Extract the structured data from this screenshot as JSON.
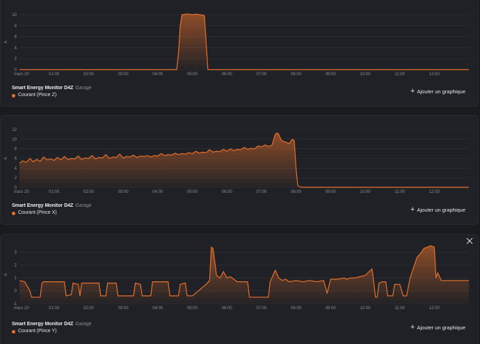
{
  "theme": {
    "accent": "#e8702a",
    "grid": "#34353c",
    "background": "#202126"
  },
  "add_graph_label": "Ajouter un graphique",
  "panels": [
    {
      "device": "Smart Energy Monitor D4Z",
      "room": "Garage",
      "series_name": "Courant (Pince Z)",
      "series_color": "#e8702a",
      "close_icon": false
    },
    {
      "device": "Smart Energy Monitor D4Z",
      "room": "Garage",
      "series_name": "Courant (Pince X)",
      "series_color": "#e8702a",
      "close_icon": false
    },
    {
      "device": "Smart Energy Monitor D4Z",
      "room": "Garage",
      "series_name": "Courant (Pince Y)",
      "series_color": "#e8702a",
      "close_icon": true
    }
  ],
  "chart_data": [
    {
      "type": "area",
      "xlabel": "",
      "ylabel": "A",
      "x_ticks": [
        "mars 20",
        "01:00",
        "02:00",
        "03:00",
        "04:00",
        "05:00",
        "06:00",
        "07:00",
        "08:00",
        "09:00",
        "10:00",
        "11:00",
        "12:00"
      ],
      "y_ticks": [
        "0",
        "2",
        "4",
        "6",
        "8",
        "10"
      ],
      "ylim": [
        0,
        10
      ],
      "xlim": [
        0,
        13
      ],
      "series": [
        {
          "x": [
            0,
            4.55,
            4.6,
            4.65,
            4.7,
            4.75,
            4.8,
            4.9,
            5.0,
            5.1,
            5.2,
            5.3,
            5.35,
            5.4,
            5.45,
            13
          ],
          "y": [
            0,
            0,
            3,
            8,
            10,
            10,
            10.1,
            10.1,
            10,
            10.1,
            10,
            9.9,
            9.8,
            5,
            0,
            0
          ]
        }
      ]
    },
    {
      "type": "area",
      "xlabel": "",
      "ylabel": "A",
      "x_ticks": [
        "mars 20",
        "01:00",
        "02:00",
        "03:00",
        "04:00",
        "05:00",
        "06:00",
        "07:00",
        "08:00",
        "09:00",
        "10:00",
        "11:00",
        "12:00"
      ],
      "y_ticks": [
        "0",
        "2",
        "4",
        "6",
        "8",
        "10",
        "12"
      ],
      "ylim": [
        0,
        12
      ],
      "xlim": [
        0,
        13
      ],
      "series": [
        {
          "x": [
            0,
            0.1,
            0.2,
            0.3,
            0.4,
            0.5,
            0.6,
            0.7,
            0.8,
            0.9,
            1.0,
            1.1,
            1.2,
            1.3,
            1.4,
            1.5,
            1.6,
            1.7,
            1.8,
            1.9,
            2.0,
            2.1,
            2.2,
            2.3,
            2.4,
            2.5,
            2.6,
            2.7,
            2.8,
            2.9,
            3.0,
            3.1,
            3.2,
            3.3,
            3.4,
            3.5,
            3.6,
            3.7,
            3.8,
            3.9,
            4.0,
            4.1,
            4.2,
            4.3,
            4.4,
            4.5,
            4.6,
            4.7,
            4.8,
            4.9,
            5.0,
            5.1,
            5.2,
            5.3,
            5.4,
            5.5,
            5.6,
            5.7,
            5.8,
            5.9,
            6.0,
            6.1,
            6.2,
            6.3,
            6.4,
            6.5,
            6.6,
            6.7,
            6.8,
            6.9,
            7.0,
            7.1,
            7.2,
            7.3,
            7.4,
            7.45,
            7.5,
            7.55,
            7.6,
            7.7,
            7.8,
            7.9,
            7.95,
            8.0,
            8.05,
            8.1,
            8.2,
            8.3,
            13
          ],
          "y": [
            5.0,
            5.5,
            5.2,
            6.0,
            5.3,
            5.8,
            5.4,
            6.3,
            5.7,
            5.9,
            5.6,
            6.2,
            5.7,
            6.4,
            5.8,
            6.0,
            5.9,
            6.5,
            5.8,
            6.1,
            6.0,
            6.6,
            5.9,
            6.2,
            6.1,
            6.8,
            6.0,
            6.3,
            6.2,
            6.9,
            6.1,
            6.4,
            6.3,
            6.7,
            6.2,
            6.5,
            6.4,
            6.6,
            6.3,
            6.6,
            6.5,
            7.0,
            6.6,
            6.8,
            6.7,
            7.1,
            6.8,
            7.0,
            6.9,
            7.2,
            7.0,
            7.5,
            7.1,
            7.3,
            7.2,
            7.8,
            7.3,
            7.5,
            7.4,
            7.9,
            7.5,
            8.0,
            7.6,
            7.9,
            7.8,
            8.3,
            7.9,
            8.1,
            8.0,
            8.6,
            8.4,
            8.8,
            8.5,
            8.7,
            11.0,
            11.3,
            11.0,
            10.1,
            9.6,
            9.4,
            9.1,
            10.0,
            9.6,
            4.0,
            0.4,
            0.1,
            0,
            0,
            0
          ]
        }
      ]
    },
    {
      "type": "area",
      "xlabel": "",
      "ylabel": "A",
      "x_ticks": [
        "mars 20",
        "01:00",
        "02:00",
        "03:00",
        "04:00",
        "05:00",
        "06:00",
        "07:00",
        "08:00",
        "09:00",
        "10:00",
        "11:00",
        "12:00"
      ],
      "y_ticks": [
        "-1",
        "0",
        "1",
        "2",
        "3"
      ],
      "ylim": [
        -1,
        3.5
      ],
      "xlim": [
        0,
        13
      ],
      "series": [
        {
          "x": [
            0,
            0.15,
            0.3,
            0.35,
            0.6,
            0.65,
            0.7,
            1.3,
            1.35,
            1.5,
            1.55,
            1.7,
            1.75,
            1.8,
            2.3,
            2.35,
            2.5,
            2.55,
            2.8,
            2.85,
            3.3,
            3.35,
            3.5,
            3.55,
            3.8,
            3.85,
            4.3,
            4.35,
            4.6,
            4.65,
            4.8,
            4.85,
            5.0,
            5.4,
            5.5,
            5.55,
            5.6,
            5.7,
            5.8,
            5.9,
            6.0,
            6.1,
            6.2,
            6.3,
            6.6,
            6.65,
            7.2,
            7.25,
            7.4,
            7.5,
            7.6,
            7.7,
            7.8,
            8.0,
            8.2,
            8.4,
            8.6,
            8.8,
            8.9,
            9.0,
            9.2,
            9.4,
            9.45,
            9.6,
            9.7,
            10.0,
            10.2,
            10.3,
            10.35,
            10.4,
            10.5,
            10.6,
            10.65,
            10.8,
            10.85,
            11.0,
            11.1,
            11.2,
            11.3,
            11.5,
            11.6,
            11.7,
            11.8,
            11.9,
            12.0,
            12.05,
            12.1,
            12.2,
            12.4,
            12.6,
            12.8,
            12.9,
            13
          ],
          "y": [
            0.8,
            0.7,
            0,
            -0.5,
            -0.5,
            0.6,
            0.7,
            0.7,
            -0.4,
            -0.3,
            0.6,
            0.5,
            -0.4,
            0.6,
            0.6,
            -0.4,
            -0.4,
            0.6,
            0.6,
            -0.4,
            -0.4,
            0.6,
            0.5,
            -0.4,
            -0.4,
            0.7,
            0.7,
            -0.4,
            -0.4,
            0.5,
            0.6,
            -0.4,
            -0.4,
            0.5,
            0.8,
            3.4,
            3.3,
            1.2,
            1.0,
            1.5,
            1.0,
            1.1,
            0.9,
            0.7,
            0.7,
            -0.5,
            -0.5,
            0.7,
            1.6,
            1.0,
            0.8,
            0.9,
            0.7,
            0.8,
            0.7,
            0.8,
            0.7,
            0.8,
            -0.2,
            0.9,
            0.9,
            1.0,
            0.9,
            1.0,
            1.0,
            1.2,
            1.7,
            -0.5,
            -0.5,
            0.6,
            0.7,
            0.7,
            -0.4,
            -0.4,
            0.5,
            0.5,
            -0.4,
            -0.4,
            1.0,
            2.6,
            2.9,
            3.3,
            3.4,
            3.5,
            3.4,
            1.0,
            1.4,
            0.8,
            0.8,
            0.8,
            0.8,
            0.8,
            0.8
          ]
        }
      ]
    }
  ]
}
